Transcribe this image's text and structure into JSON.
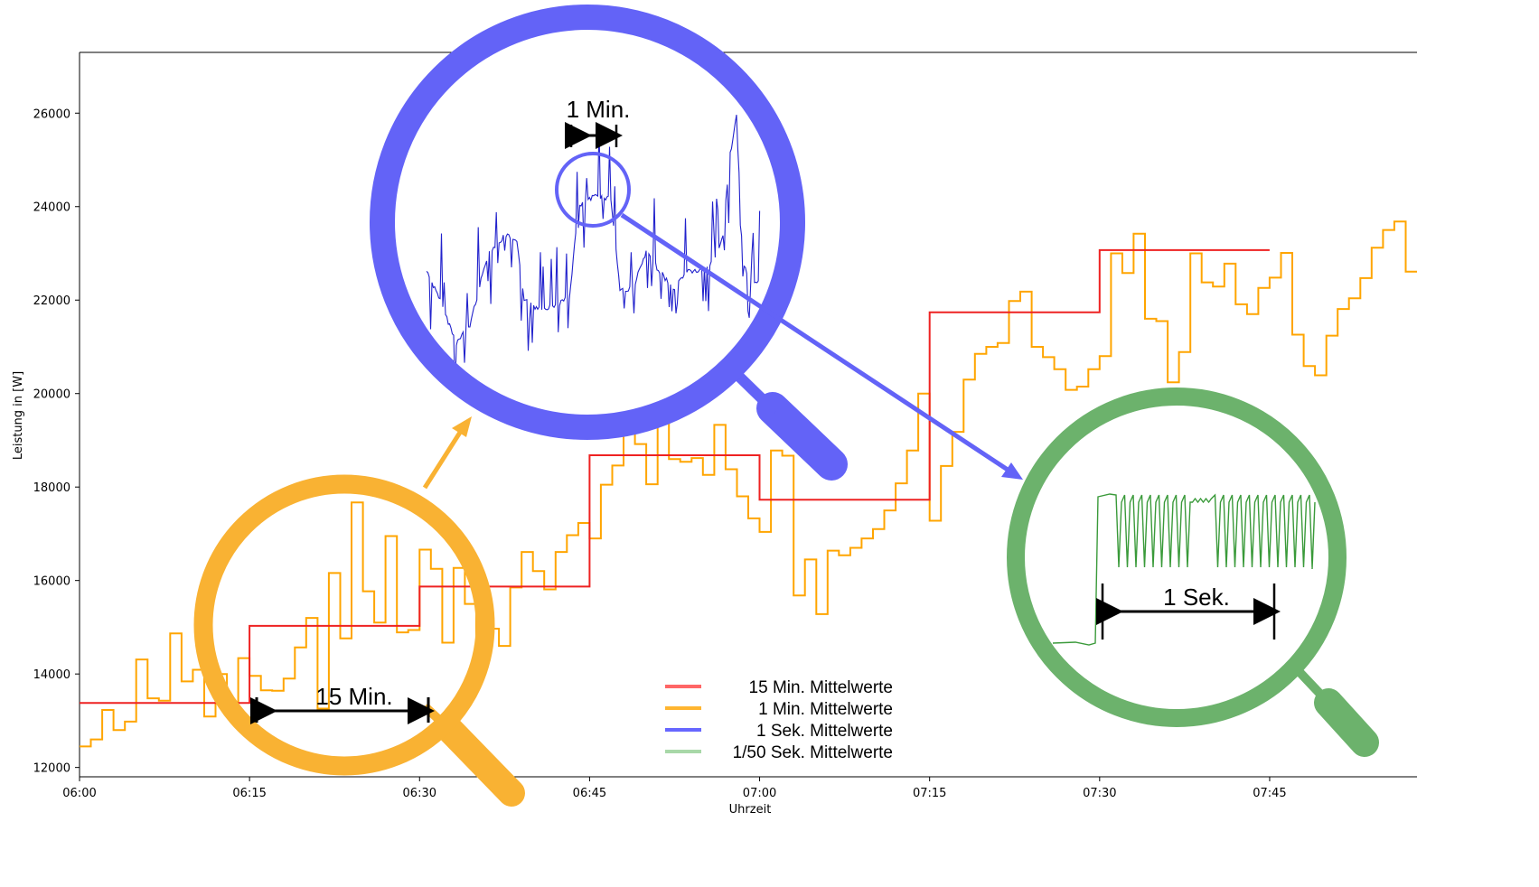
{
  "chart_data": {
    "type": "line",
    "title": "",
    "xlabel": "Uhrzeit",
    "ylabel": "Leistung in [W]",
    "x_ticks": [
      "06:00",
      "06:15",
      "06:30",
      "06:45",
      "07:00",
      "07:15",
      "07:30",
      "07:45"
    ],
    "y_ticks": [
      12000,
      14000,
      16000,
      18000,
      20000,
      22000,
      24000,
      26000
    ],
    "ylim": [
      11800,
      27300
    ],
    "xlim_minutes": [
      0,
      118
    ],
    "grid": false,
    "legend_position": "bottom-center",
    "series": [
      {
        "name": "15 Min. Mittelwerte",
        "color": "#ee2222",
        "step": true,
        "x_minutes": [
          0,
          15,
          30,
          45,
          60,
          75,
          90,
          105
        ],
        "values": [
          13380,
          15030,
          15870,
          18680,
          17730,
          21740,
          23070,
          23070
        ]
      },
      {
        "name": "1 Min. Mittelwerte",
        "color": "#ffa500",
        "step": true,
        "x_minutes": [
          0,
          1,
          2,
          3,
          4,
          5,
          6,
          7,
          8,
          9,
          10,
          11,
          12,
          13,
          14,
          15,
          16,
          17,
          18,
          19,
          20,
          21,
          22,
          23,
          24,
          25,
          26,
          27,
          28,
          29,
          30,
          31,
          32,
          33,
          34,
          35,
          36,
          37,
          38,
          39,
          40,
          41,
          42,
          43,
          44,
          45,
          46,
          47,
          48,
          49,
          50,
          51,
          52,
          53,
          54,
          55,
          56,
          57,
          58,
          59,
          60,
          61,
          62,
          63,
          64,
          65,
          66,
          67,
          68,
          69,
          70,
          71,
          72,
          73,
          74,
          75,
          76,
          77,
          78,
          79,
          80,
          81,
          82,
          83,
          84,
          85,
          86,
          87,
          88,
          89,
          90,
          91,
          92,
          93,
          94,
          95,
          96,
          97,
          98,
          99,
          100,
          101,
          102,
          103,
          104,
          105,
          106,
          107,
          108,
          109,
          110,
          111,
          112,
          113,
          114,
          115,
          116,
          117
        ],
        "values": [
          12450,
          12600,
          13230,
          12800,
          12980,
          14310,
          13480,
          13430,
          14870,
          13840,
          14090,
          13090,
          14000,
          13090,
          14340,
          13960,
          13650,
          13640,
          13900,
          14570,
          15200,
          13260,
          16160,
          14760,
          17670,
          15770,
          15100,
          16950,
          14890,
          14940,
          16660,
          16250,
          14670,
          16270,
          15500,
          14670,
          14970,
          14600,
          15850,
          16610,
          16200,
          15810,
          16610,
          16970,
          17230,
          16900,
          18050,
          18460,
          20110,
          18920,
          18060,
          20140,
          18600,
          18540,
          18620,
          18260,
          19330,
          18380,
          17800,
          17330,
          17040,
          18780,
          18670,
          15680,
          16450,
          15280,
          16640,
          16540,
          16700,
          16900,
          17100,
          17500,
          18080,
          18780,
          20000,
          17280,
          18450,
          19180,
          20300,
          20850,
          21000,
          21080,
          21980,
          22180,
          21000,
          20780,
          20520,
          20080,
          20150,
          20520,
          20800,
          23000,
          22580,
          23420,
          21600,
          21550,
          20240,
          20890,
          23000,
          22380,
          22290,
          22780,
          21910,
          21700,
          22260,
          22480,
          23010,
          21260,
          20590,
          20390,
          21240,
          21810,
          22040,
          22470,
          23120,
          23500,
          23680,
          22610
        ]
      }
    ],
    "annotations": {
      "orange_lens": "15 Min.",
      "blue_lens": "1 Min.",
      "green_lens": "1 Sek."
    },
    "legend": [
      {
        "label": "15 Min. Mittelwerte",
        "color": "#ff6666"
      },
      {
        "label": "1 Min. Mittelwerte",
        "color": "#ffb530"
      },
      {
        "label": "1 Sek. Mittelwerte",
        "color": "#6666ff"
      },
      {
        "label": "1/50 Sek. Mittelwerte",
        "color": "#a8d8a8"
      }
    ],
    "lens_colors": {
      "orange": "#f9b233",
      "blue": "#6363f7",
      "green": "#6cb26c"
    }
  }
}
